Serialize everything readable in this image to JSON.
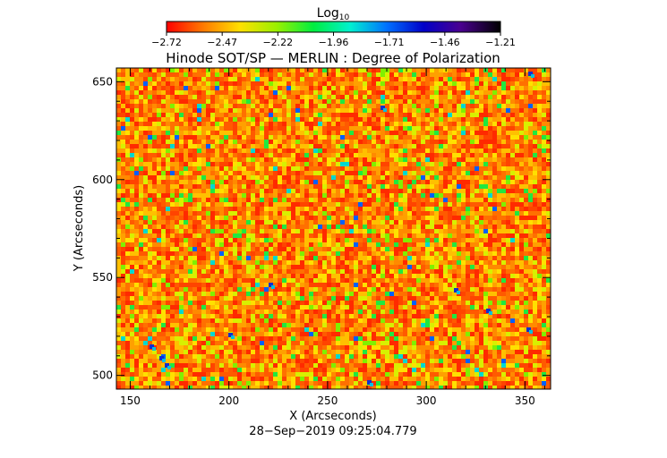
{
  "chart_data": {
    "type": "heatmap",
    "title": "Hinode SOT/SP — MERLIN : Degree of Polarization",
    "colorbar": {
      "label": "Log",
      "label_subscript": "10",
      "ticks": [
        "−2.72",
        "−2.47",
        "−2.22",
        "−1.96",
        "−1.71",
        "−1.46",
        "−1.21"
      ],
      "range": [
        -2.72,
        -1.21
      ],
      "colormap": [
        "#ff0000",
        "#ff7a00",
        "#ffe000",
        "#9af000",
        "#00ee40",
        "#00f0d0",
        "#0070ff",
        "#0000c8",
        "#4a0090",
        "#000000"
      ]
    },
    "xlabel": "X (Arcseconds)",
    "ylabel": "Y (Arcseconds)",
    "xlim": [
      143,
      363
    ],
    "ylim": [
      493,
      657
    ],
    "xticks": [
      150,
      200,
      250,
      300,
      350
    ],
    "yticks": [
      500,
      550,
      600,
      650
    ],
    "xtick_labels": [
      "150",
      "200",
      "250",
      "300",
      "350"
    ],
    "ytick_labels": [
      "500",
      "550",
      "600",
      "650"
    ],
    "dominant_log10_range": [
      -2.72,
      -2.35
    ],
    "grid": false,
    "timestamp": "28−Sep−2019 09:25:04.779"
  }
}
